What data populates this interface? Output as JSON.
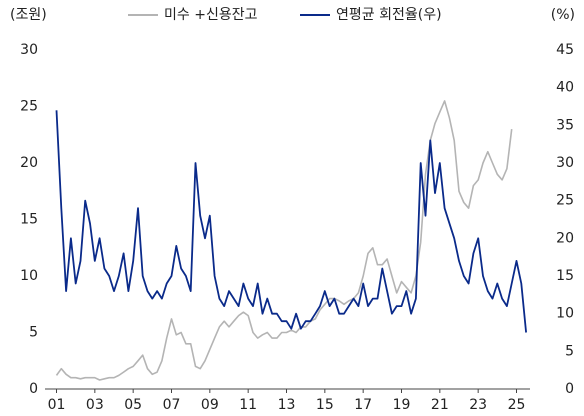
{
  "chart_data": {
    "type": "line",
    "y_unit_label": "(조원)",
    "y2_unit_label": "(%)",
    "x": [
      2001,
      2001.25,
      2001.5,
      2001.75,
      2002,
      2002.25,
      2002.5,
      2002.75,
      2003,
      2003.25,
      2003.5,
      2003.75,
      2004,
      2004.25,
      2004.5,
      2004.75,
      2005,
      2005.25,
      2005.5,
      2005.75,
      2006,
      2006.25,
      2006.5,
      2006.75,
      2007,
      2007.25,
      2007.5,
      2007.75,
      2008,
      2008.25,
      2008.5,
      2008.75,
      2009,
      2009.25,
      2009.5,
      2009.75,
      2010,
      2010.25,
      2010.5,
      2010.75,
      2011,
      2011.25,
      2011.5,
      2011.75,
      2012,
      2012.25,
      2012.5,
      2012.75,
      2013,
      2013.25,
      2013.5,
      2013.75,
      2014,
      2014.25,
      2014.5,
      2014.75,
      2015,
      2015.25,
      2015.5,
      2015.75,
      2016,
      2016.25,
      2016.5,
      2016.75,
      2017,
      2017.25,
      2017.5,
      2017.75,
      2018,
      2018.25,
      2018.5,
      2018.75,
      2019,
      2019.25,
      2019.5,
      2019.75,
      2020,
      2020.25,
      2020.5,
      2020.75,
      2021,
      2021.25,
      2021.5,
      2021.75,
      2022,
      2022.25,
      2022.5,
      2022.75,
      2023,
      2023.25,
      2023.5,
      2023.75,
      2024,
      2024.25,
      2024.5,
      2024.75,
      2025,
      2025.25,
      2025.5
    ],
    "series": [
      {
        "name": "미수 +신용잔고",
        "color": "#b4b4b4",
        "axis": "y",
        "values": [
          1.2,
          1.8,
          1.3,
          1.0,
          1.0,
          0.9,
          1.0,
          1.0,
          1.0,
          0.8,
          0.9,
          1.0,
          1.0,
          1.2,
          1.5,
          1.8,
          2.0,
          2.5,
          3.0,
          1.8,
          1.3,
          1.5,
          2.5,
          4.5,
          6.2,
          4.8,
          5.0,
          4.0,
          4.0,
          2.0,
          1.8,
          2.5,
          3.5,
          4.5,
          5.5,
          6.0,
          5.5,
          6.0,
          6.5,
          6.8,
          6.5,
          5.0,
          4.5,
          4.8,
          5.0,
          4.5,
          4.5,
          5.0,
          5.0,
          5.2,
          5.0,
          5.5,
          5.5,
          6.0,
          6.2,
          7.0,
          7.5,
          8.0,
          8.0,
          7.8,
          7.5,
          7.8,
          8.0,
          8.5,
          10.0,
          12.0,
          12.5,
          11.0,
          11.0,
          11.5,
          10.0,
          8.5,
          9.5,
          9.0,
          8.5,
          10.0,
          13.0,
          19.0,
          22.0,
          23.5,
          24.5,
          25.5,
          24.0,
          22.0,
          17.5,
          16.5,
          16.0,
          18.0,
          18.5,
          20.0,
          21.0,
          20.0,
          19.0,
          18.5,
          19.5,
          23.0,
          null,
          null,
          null
        ]
      },
      {
        "name": "연평균 회전율(우)",
        "color": "#0a2a8a",
        "axis": "y2",
        "values": [
          37,
          24,
          13,
          20,
          14,
          17,
          25,
          22,
          17,
          20,
          16,
          15,
          13,
          15,
          18,
          13,
          17,
          24,
          15,
          13,
          12,
          13,
          12,
          14,
          15,
          19,
          16,
          15,
          13,
          30,
          23,
          20,
          23,
          15,
          12,
          11,
          13,
          12,
          11,
          14,
          12,
          11,
          14,
          10,
          12,
          10,
          10,
          9,
          9,
          8,
          10,
          8,
          9,
          9,
          10,
          11,
          13,
          11,
          12,
          10,
          10,
          11,
          12,
          11,
          14,
          11,
          12,
          12,
          16,
          13,
          10,
          11,
          11,
          13,
          10,
          12,
          30,
          23,
          33,
          26,
          30,
          24,
          22,
          20,
          17,
          15,
          14,
          18,
          20,
          15,
          13,
          12,
          14,
          12,
          11,
          14,
          17,
          14,
          7.5
        ]
      }
    ],
    "xlim": [
      2000.4,
      2025.6
    ],
    "xticks": [
      {
        "value": 2001,
        "label": "01"
      },
      {
        "value": 2003,
        "label": "03"
      },
      {
        "value": 2005,
        "label": "05"
      },
      {
        "value": 2007,
        "label": "07"
      },
      {
        "value": 2009,
        "label": "09"
      },
      {
        "value": 2011,
        "label": "11"
      },
      {
        "value": 2013,
        "label": "13"
      },
      {
        "value": 2015,
        "label": "15"
      },
      {
        "value": 2017,
        "label": "17"
      },
      {
        "value": 2019,
        "label": "19"
      },
      {
        "value": 2021,
        "label": "21"
      },
      {
        "value": 2023,
        "label": "23"
      },
      {
        "value": 2025,
        "label": "25"
      }
    ],
    "ylim": [
      0,
      30
    ],
    "yticks": [
      0,
      5,
      10,
      15,
      20,
      25,
      30
    ],
    "y2lim": [
      0,
      45
    ],
    "y2ticks": [
      0,
      5,
      10,
      15,
      20,
      25,
      30,
      35,
      40,
      45
    ],
    "grid": false
  }
}
